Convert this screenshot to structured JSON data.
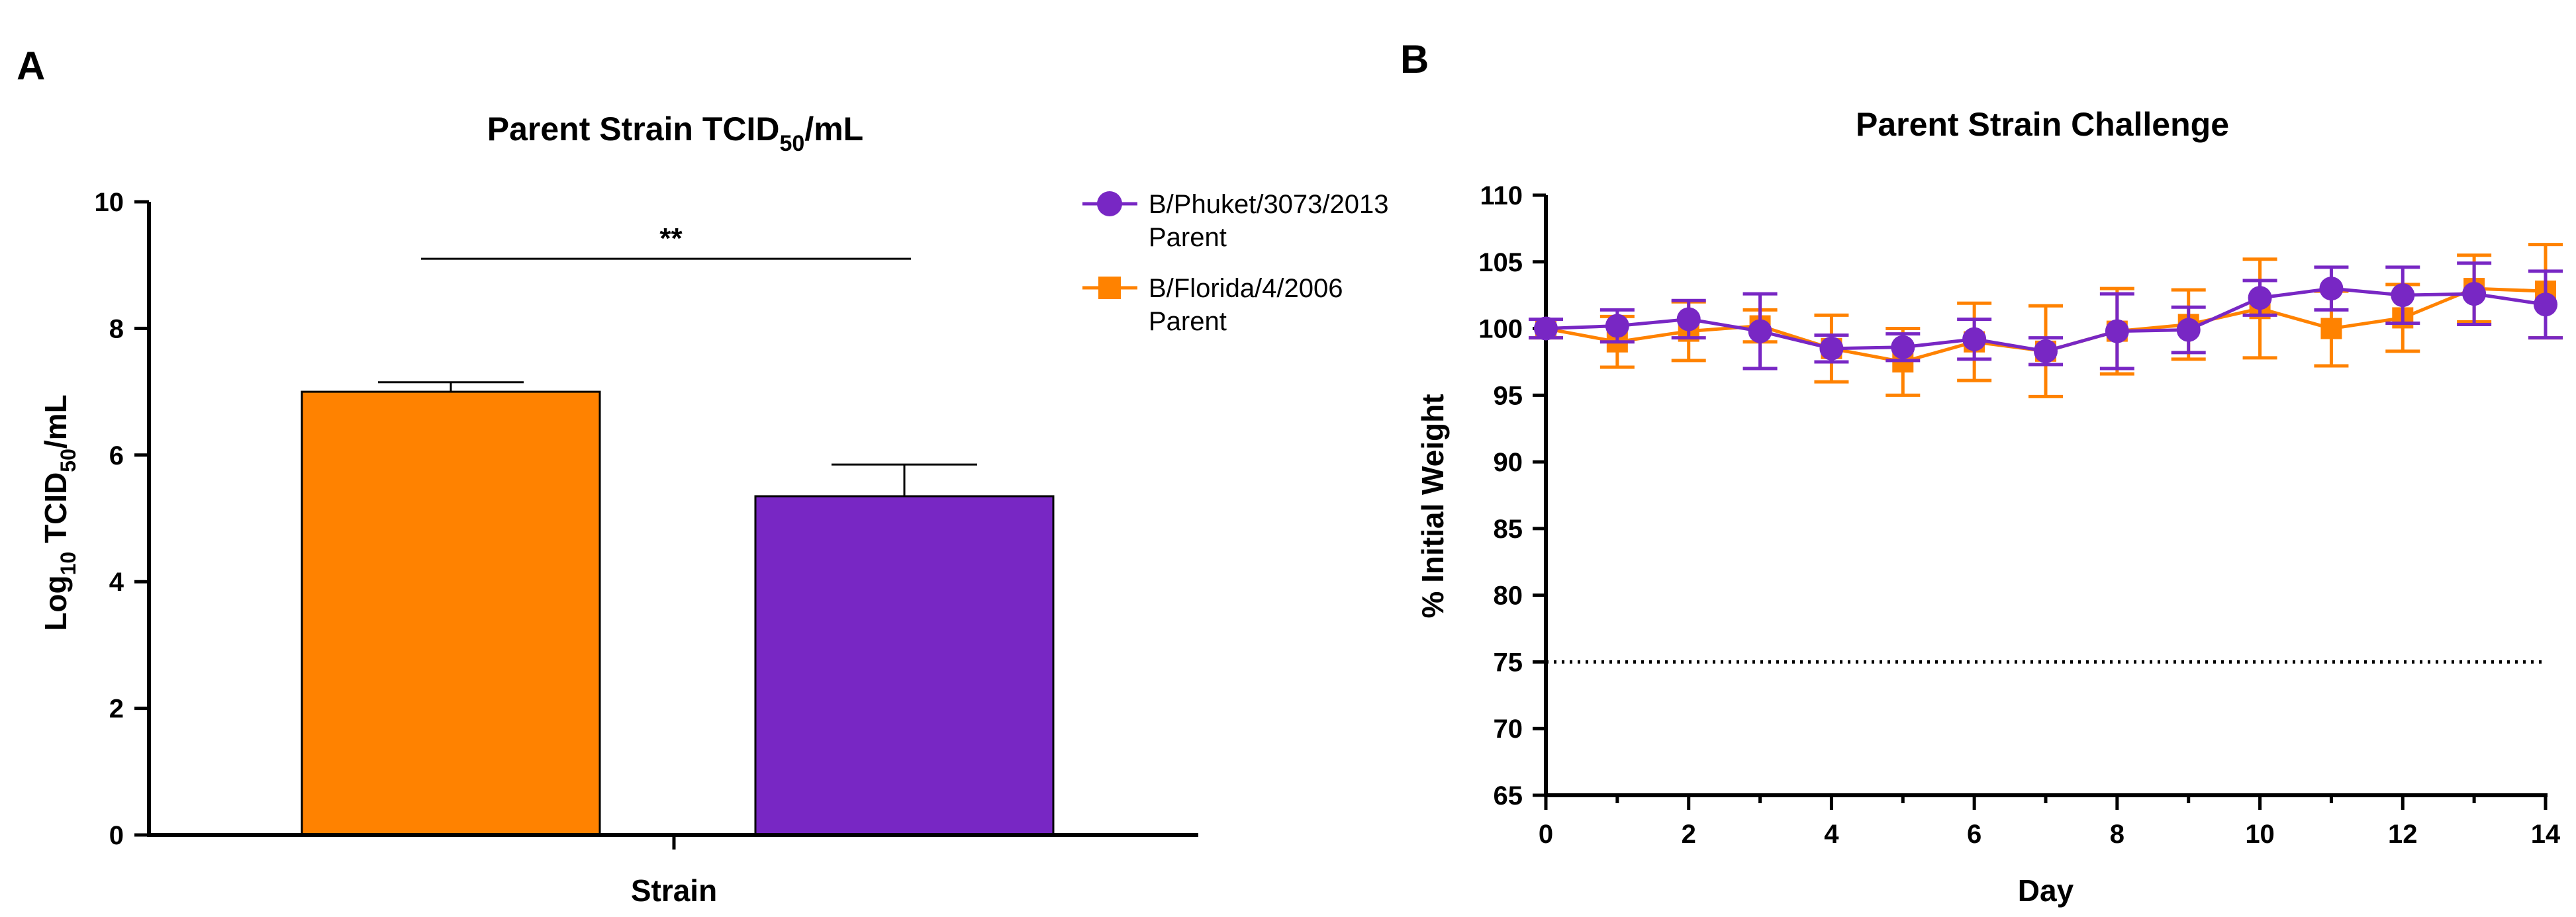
{
  "panels": {
    "a": "A",
    "b": "B"
  },
  "chart_data": [
    {
      "type": "bar",
      "title": "Parent Strain TCID",
      "title_sub": "50",
      "title_suffix": "/mL",
      "xlabel": "Strain",
      "ylabel_prefix": "Log",
      "ylabel_sub1": "10",
      "ylabel_mid": " TCID",
      "ylabel_sub2": "50",
      "ylabel_suffix": "/mL",
      "ylim": [
        0,
        10
      ],
      "yticks": [
        "0",
        "2",
        "4",
        "6",
        "8",
        "10"
      ],
      "bars": [
        {
          "value": 7.0,
          "error": 0.15,
          "color": "#FF8200"
        },
        {
          "value": 5.35,
          "error": 0.5,
          "color": "#7827C4"
        }
      ],
      "significance": {
        "label": "**",
        "y": 9.1
      }
    },
    {
      "type": "line",
      "title": "Parent Strain Challenge",
      "xlabel": "Day",
      "ylabel": "% Initial Weight",
      "xlim": [
        0,
        14
      ],
      "ylim": [
        65,
        110
      ],
      "xticks": [
        "0",
        "2",
        "4",
        "6",
        "8",
        "10",
        "12",
        "14"
      ],
      "yticks": [
        "65",
        "70",
        "75",
        "80",
        "85",
        "90",
        "95",
        "100",
        "105",
        "110"
      ],
      "reference_line": 75,
      "x": [
        0,
        1,
        2,
        3,
        4,
        5,
        6,
        7,
        8,
        9,
        10,
        11,
        12,
        13,
        14
      ],
      "series": [
        {
          "name": "B/Florida/4/2006 Parent",
          "color": "#FF8200",
          "marker": "square",
          "values": [
            100,
            99,
            99.8,
            100.2,
            98.5,
            97.5,
            99,
            98.3,
            99.8,
            100.3,
            101.5,
            100,
            100.8,
            103,
            102.8
          ],
          "errors": [
            0.7,
            1.9,
            2.2,
            1.2,
            2.5,
            2.5,
            2.9,
            3.4,
            3.2,
            2.6,
            3.7,
            2.8,
            2.5,
            2.5,
            3.5
          ]
        },
        {
          "name": "B/Phuket/3073/2013 Parent",
          "color": "#7827C4",
          "marker": "circle",
          "values": [
            100,
            100.2,
            100.7,
            99.8,
            98.5,
            98.6,
            99.2,
            98.3,
            99.8,
            99.9,
            102.3,
            103,
            102.5,
            102.6,
            101.8
          ],
          "errors": [
            0.7,
            1.2,
            1.4,
            2.8,
            1.0,
            1.0,
            1.5,
            1.0,
            2.8,
            1.7,
            1.3,
            1.6,
            2.1,
            2.3,
            2.5
          ]
        }
      ]
    }
  ],
  "legend": {
    "items": [
      {
        "line1": "B/Phuket/3073/2013",
        "line2": "Parent",
        "color": "#7827C4",
        "marker": "circle"
      },
      {
        "line1": "B/Florida/4/2006",
        "line2": "Parent",
        "color": "#FF8200",
        "marker": "square"
      }
    ]
  }
}
